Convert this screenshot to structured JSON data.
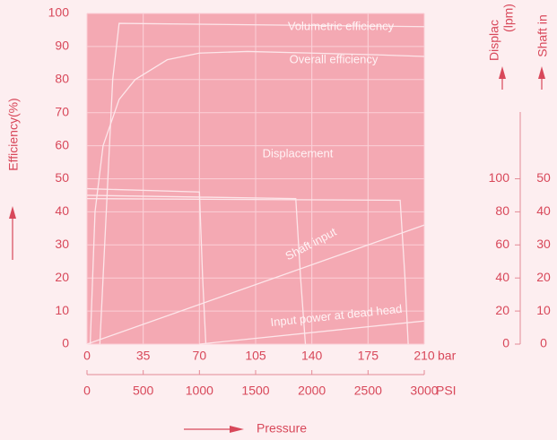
{
  "chart_data": {
    "type": "line",
    "ylabel": "Efficiency(%)",
    "y2label": "Displac",
    "y2sublabel": "(lpm)",
    "y3label": "Shaft in",
    "xlabel": "Pressure",
    "xunit": "bar",
    "x2unit": "PSI",
    "xlim": [
      0,
      210
    ],
    "xticks": [
      0,
      35,
      70,
      105,
      140,
      175,
      210
    ],
    "x2lim": [
      0,
      3000
    ],
    "x2ticks": [
      0,
      500,
      1000,
      1500,
      2000,
      2500,
      3000
    ],
    "ylim": [
      0,
      100
    ],
    "yticks": [
      0,
      10,
      20,
      30,
      40,
      50,
      60,
      70,
      80,
      90,
      100
    ],
    "y2lim": [
      0,
      200
    ],
    "y2ticks": [
      0,
      20,
      40,
      60,
      80,
      100
    ],
    "y3lim": [
      0,
      100
    ],
    "y3ticks": [
      0,
      10,
      20,
      30,
      40,
      50
    ],
    "grid": true,
    "series": [
      {
        "name": "Volumetric efficiency",
        "color": "#fde6ea",
        "x": [
          8,
          12,
          16,
          20,
          210
        ],
        "values": [
          0,
          40,
          80,
          97,
          96
        ]
      },
      {
        "name": "Overall efficiency",
        "color": "#fde6ea",
        "x": [
          2,
          5,
          10,
          20,
          30,
          50,
          70,
          100,
          140,
          180,
          210
        ],
        "values": [
          0,
          40,
          60,
          74,
          80,
          86,
          88,
          88.5,
          88,
          87.5,
          87
        ]
      },
      {
        "name": "Displacement",
        "color": "#fde6ea",
        "axis": "y2",
        "x": [
          0,
          70,
          72,
          74,
          74,
          0,
          130,
          133,
          136,
          136,
          0,
          195,
          198,
          200
        ],
        "values": [
          94,
          92,
          40,
          0,
          null,
          90,
          88,
          40,
          0,
          null,
          88,
          87,
          40,
          0
        ]
      },
      {
        "name": "Shaft input",
        "color": "#fde6ea",
        "axis": "y3",
        "x": [
          0,
          210
        ],
        "values": [
          0,
          36
        ]
      },
      {
        "name": "Input power at dead head",
        "color": "#fde6ea",
        "axis": "y3",
        "x": [
          70,
          210
        ],
        "values": [
          0,
          7
        ]
      }
    ]
  }
}
